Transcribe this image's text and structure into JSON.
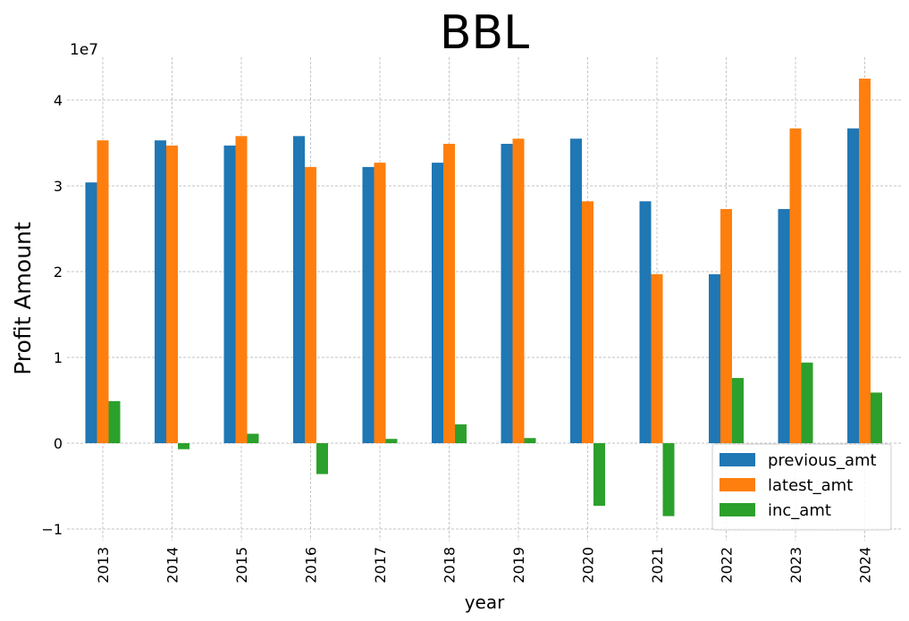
{
  "chart_data": {
    "type": "bar",
    "title": "BBL",
    "xlabel": "year",
    "ylabel": "Profit Amount",
    "y_offset_label": "1e7",
    "ylim": [
      -1.1,
      4.5
    ],
    "yticks": [
      -1,
      0,
      1,
      2,
      3,
      4
    ],
    "ytick_labels": [
      "−1",
      "0",
      "1",
      "2",
      "3",
      "4"
    ],
    "grid": true,
    "legend_position": "bottom-right",
    "categories": [
      "2013",
      "2014",
      "2015",
      "2016",
      "2017",
      "2018",
      "2019",
      "2020",
      "2021",
      "2022",
      "2023",
      "2024"
    ],
    "series": [
      {
        "name": "previous_amt",
        "color": "#1f77b4",
        "values": [
          3.04,
          3.53,
          3.47,
          3.58,
          3.22,
          3.27,
          3.49,
          3.55,
          2.82,
          1.97,
          2.73,
          3.67
        ]
      },
      {
        "name": "latest_amt",
        "color": "#ff7f0e",
        "values": [
          3.53,
          3.47,
          3.58,
          3.22,
          3.27,
          3.49,
          3.55,
          2.82,
          1.97,
          2.73,
          3.67,
          4.25
        ]
      },
      {
        "name": "inc_amt",
        "color": "#2ca02c",
        "values": [
          0.49,
          -0.07,
          0.11,
          -0.36,
          0.05,
          0.22,
          0.06,
          -0.73,
          -0.85,
          0.76,
          0.94,
          0.59
        ]
      }
    ]
  }
}
